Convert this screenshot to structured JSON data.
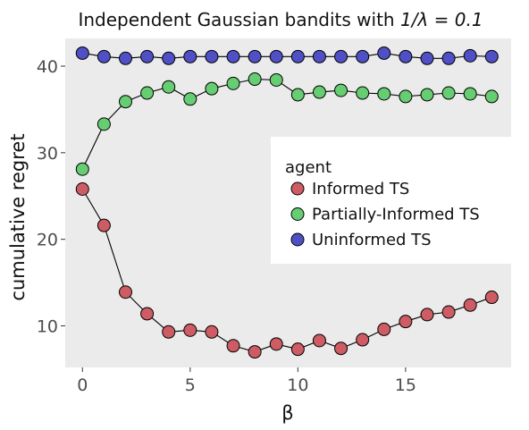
{
  "chart_data": {
    "type": "scatter",
    "title": "Independent Gaussian bandits with 1/λ = 0.1",
    "title_parts": {
      "prefix": "Independent Gaussian bandits with ",
      "math": "1/λ = 0.1"
    },
    "xlabel": "β",
    "ylabel": "cumulative regret",
    "xlim": [
      -0.8,
      19.9
    ],
    "ylim": [
      5.2,
      43.2
    ],
    "xticks": [
      0,
      5,
      10,
      15
    ],
    "yticks": [
      10,
      20,
      30,
      40
    ],
    "grid": false,
    "panel_background": "#ebebeb",
    "legend": {
      "title": "agent",
      "placement": "right, inside panel"
    },
    "x": [
      0,
      1,
      2,
      3,
      4,
      5,
      6,
      7,
      8,
      9,
      10,
      11,
      12,
      13,
      14,
      15,
      16,
      17,
      18,
      19
    ],
    "series": [
      {
        "name": "Informed TS",
        "color": "#cd5c64",
        "connected": true,
        "values": [
          25.8,
          21.6,
          13.9,
          11.4,
          9.3,
          9.5,
          9.3,
          7.7,
          7.0,
          7.9,
          7.3,
          8.3,
          7.4,
          8.4,
          9.6,
          10.5,
          11.3,
          11.6,
          12.4,
          13.3
        ]
      },
      {
        "name": "Partially-Informed TS",
        "color": "#66cd72",
        "connected": true,
        "values": [
          28.1,
          33.3,
          35.9,
          36.9,
          37.6,
          36.2,
          37.4,
          38.0,
          38.5,
          38.4,
          36.7,
          37.0,
          37.2,
          36.9,
          36.8,
          36.5,
          36.7,
          36.9,
          36.8,
          36.5
        ]
      },
      {
        "name": "Uninformed TS",
        "color": "#5050c6",
        "connected": true,
        "values": [
          41.5,
          41.1,
          40.9,
          41.1,
          40.9,
          41.1,
          41.1,
          41.1,
          41.1,
          41.1,
          41.1,
          41.1,
          41.1,
          41.1,
          41.5,
          41.1,
          40.9,
          40.9,
          41.2,
          41.1
        ]
      }
    ]
  }
}
